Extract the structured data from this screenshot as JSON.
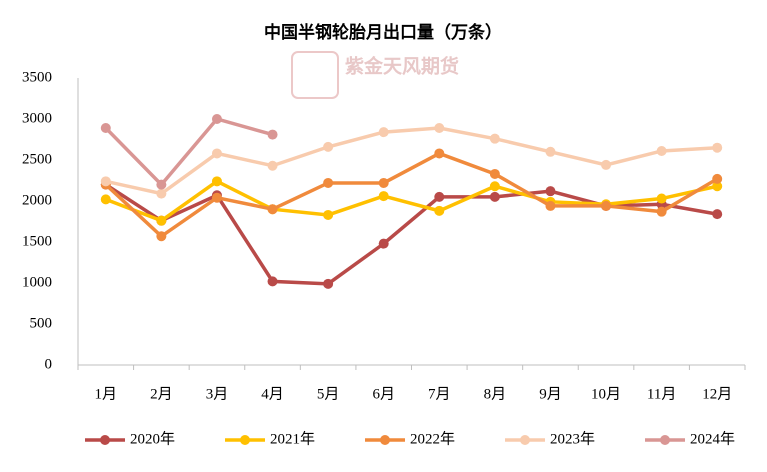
{
  "chart_data": {
    "type": "line",
    "title": "中国半钢轮胎月出口量（万条）",
    "watermark": "紫金天风期货",
    "categories": [
      "1月",
      "2月",
      "3月",
      "4月",
      "5月",
      "6月",
      "7月",
      "8月",
      "9月",
      "10月",
      "11月",
      "12月"
    ],
    "series": [
      {
        "name": "2020年",
        "color": "#b94a48",
        "values": [
          2200,
          1760,
          2070,
          1020,
          990,
          1480,
          2050,
          2050,
          2120,
          1940,
          1960,
          1840
        ]
      },
      {
        "name": "2021年",
        "color": "#ffc000",
        "values": [
          2020,
          1760,
          2240,
          1900,
          1830,
          2060,
          1880,
          2180,
          1990,
          1960,
          2030,
          2180
        ]
      },
      {
        "name": "2022年",
        "color": "#f08a3c",
        "values": [
          2200,
          1570,
          2040,
          1900,
          2220,
          2220,
          2580,
          2330,
          1940,
          1940,
          1870,
          2270
        ]
      },
      {
        "name": "2023年",
        "color": "#f8cbad",
        "values": [
          2240,
          2090,
          2580,
          2430,
          2660,
          2840,
          2890,
          2760,
          2600,
          2440,
          2610,
          2650
        ]
      },
      {
        "name": "2024年",
        "color": "#d99694",
        "values": [
          2890,
          2200,
          3000,
          2810,
          null,
          null,
          null,
          null,
          null,
          null,
          null,
          null
        ]
      }
    ],
    "ylim": [
      0,
      3500
    ],
    "yticks": [
      0,
      500,
      1000,
      1500,
      2000,
      2500,
      3000,
      3500
    ],
    "grid": false,
    "legend": "bottom"
  }
}
